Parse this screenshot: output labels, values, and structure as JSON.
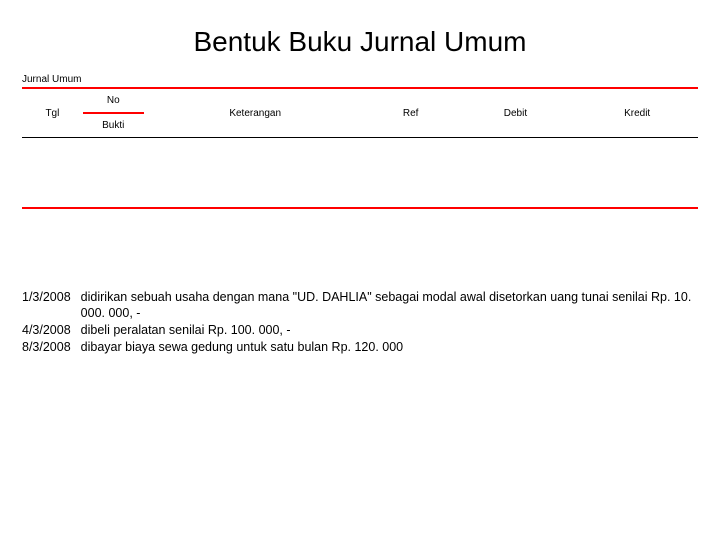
{
  "title": "Bentuk Buku Jurnal Umum",
  "subtitle": "Jurnal Umum",
  "table": {
    "columns": {
      "tgl": "Tgl",
      "no_line1": "No",
      "no_line2": "Bukti",
      "keterangan": "Keterangan",
      "ref": "Ref",
      "debit": "Debit",
      "kredit": "Kredit"
    },
    "colors": {
      "border_accent": "#ff0000",
      "border_normal": "#000000",
      "background": "#ffffff",
      "text": "#000000"
    },
    "column_widths_pct": [
      9,
      9,
      33,
      13,
      18,
      18
    ]
  },
  "entries": [
    {
      "date": "1/3/2008",
      "text": "didirikan sebuah usaha dengan mana \"UD. DAHLIA\" sebagai modal awal disetorkan uang tunai senilai Rp. 10. 000. 000, -"
    },
    {
      "date": "4/3/2008",
      "text": "dibeli peralatan senilai Rp. 100. 000, -"
    },
    {
      "date": "8/3/2008",
      "text": "dibayar biaya sewa gedung untuk satu bulan Rp. 120. 000"
    }
  ]
}
